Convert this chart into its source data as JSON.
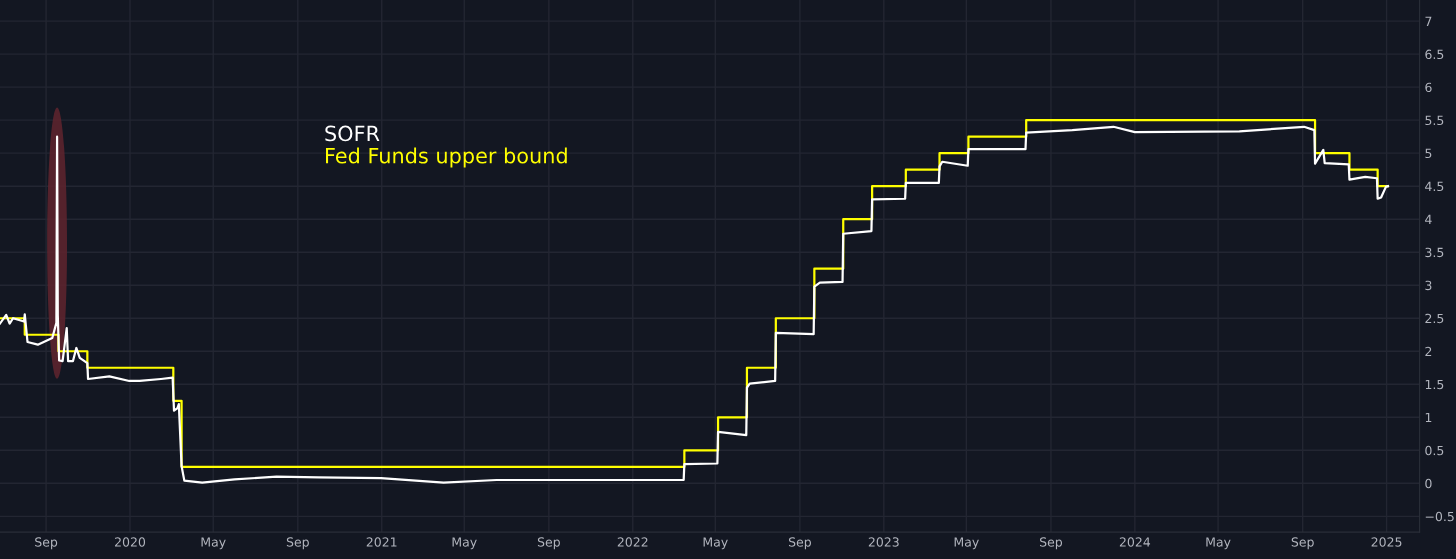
{
  "chart_data": {
    "type": "line",
    "xlim": [
      "2019-06-26",
      "2025-02-18"
    ],
    "ylim": [
      -0.74,
      7.32
    ],
    "xticks": [
      {
        "value": "2019-09",
        "label": "Sep"
      },
      {
        "value": "2020",
        "label": "2020"
      },
      {
        "value": "2020-05",
        "label": "May"
      },
      {
        "value": "2020-09",
        "label": "Sep"
      },
      {
        "value": "2021",
        "label": "2021"
      },
      {
        "value": "2021-05",
        "label": "May"
      },
      {
        "value": "2021-09",
        "label": "Sep"
      },
      {
        "value": "2022",
        "label": "2022"
      },
      {
        "value": "2022-05",
        "label": "May"
      },
      {
        "value": "2022-09",
        "label": "Sep"
      },
      {
        "value": "2023",
        "label": "2023"
      },
      {
        "value": "2023-05",
        "label": "May"
      },
      {
        "value": "2023-09",
        "label": "Sep"
      },
      {
        "value": "2024",
        "label": "2024"
      },
      {
        "value": "2024-05",
        "label": "May"
      },
      {
        "value": "2024-09",
        "label": "Sep"
      },
      {
        "value": "2025",
        "label": "2025"
      }
    ],
    "yticks": [
      {
        "value": -0.5,
        "label": "−0.5"
      },
      0,
      0.5,
      1,
      1.5,
      2,
      2.5,
      3,
      3.5,
      4,
      4.5,
      5,
      5.5,
      6,
      6.5,
      7
    ],
    "grid": true,
    "legend": "top left",
    "series": [
      {
        "name": "SOFR",
        "color": "#ffffff",
        "x": [
          "2019-06-26",
          "2019-07-05",
          "2019-07-10",
          "2019-07-15",
          "2019-07-31",
          "2019-08-01",
          "2019-08-05",
          "2019-08-20",
          "2019-09-10",
          "2019-09-16",
          "2019-09-17",
          "2019-09-18",
          "2019-09-20",
          "2019-09-25",
          "2019-10-01",
          "2019-10-03",
          "2019-10-10",
          "2019-10-15",
          "2019-10-20",
          "2019-10-31",
          "2019-11-01",
          "2019-12-02",
          "2019-12-31",
          "2020-01-15",
          "2020-02-15",
          "2020-03-03",
          "2020-03-05",
          "2020-03-10",
          "2020-03-12",
          "2020-03-16",
          "2020-03-20",
          "2020-04-15",
          "2020-06-01",
          "2020-08-01",
          "2020-10-01",
          "2020-12-31",
          "2021-04-01",
          "2021-06-17",
          "2022-03-16",
          "2022-03-17",
          "2022-05-04",
          "2022-05-05",
          "2022-06-15",
          "2022-06-16",
          "2022-06-20",
          "2022-07-27",
          "2022-07-28",
          "2022-09-21",
          "2022-09-22",
          "2022-09-30",
          "2022-11-02",
          "2022-11-03",
          "2022-12-14",
          "2022-12-15",
          "2023-02-01",
          "2023-02-02",
          "2023-03-22",
          "2023-03-23",
          "2023-03-27",
          "2023-05-03",
          "2023-05-04",
          "2023-07-26",
          "2023-07-27",
          "2023-10-02",
          "2023-12-01",
          "2024-01-01",
          "2024-06-01",
          "2024-09-03",
          "2024-09-18",
          "2024-09-19",
          "2024-10-01",
          "2024-10-03",
          "2024-11-07",
          "2024-11-08",
          "2024-12-01",
          "2024-12-18",
          "2024-12-19",
          "2024-12-24",
          "2024-12-31",
          "2025-01-03"
        ],
        "values": [
          2.42,
          2.55,
          2.42,
          2.5,
          2.45,
          2.56,
          2.14,
          2.1,
          2.2,
          2.43,
          5.25,
          2.55,
          1.86,
          1.85,
          2.35,
          1.85,
          1.85,
          2.05,
          1.9,
          1.82,
          1.58,
          1.62,
          1.55,
          1.55,
          1.58,
          1.6,
          1.1,
          1.14,
          1.2,
          0.26,
          0.04,
          0.01,
          0.06,
          0.1,
          0.09,
          0.08,
          0.01,
          0.05,
          0.05,
          0.29,
          0.3,
          0.78,
          0.73,
          1.45,
          1.51,
          1.55,
          2.28,
          2.26,
          2.98,
          3.04,
          3.05,
          3.78,
          3.82,
          4.3,
          4.31,
          4.55,
          4.55,
          4.8,
          4.87,
          4.81,
          5.06,
          5.06,
          5.31,
          5.35,
          5.4,
          5.32,
          5.33,
          5.4,
          5.35,
          4.84,
          5.05,
          4.85,
          4.83,
          4.6,
          4.64,
          4.62,
          4.31,
          4.33,
          4.49,
          4.5
        ]
      },
      {
        "name": "Fed Funds upper bound",
        "color": "#ffff00",
        "type": "step",
        "x": [
          "2019-06-26",
          "2019-08-01",
          "2019-09-19",
          "2019-10-31",
          "2020-03-04",
          "2020-03-16",
          "2022-03-17",
          "2022-05-05",
          "2022-06-16",
          "2022-07-28",
          "2022-09-22",
          "2022-11-03",
          "2022-12-15",
          "2023-02-02",
          "2023-03-23",
          "2023-05-04",
          "2023-07-27",
          "2024-09-19",
          "2024-11-08",
          "2024-12-19",
          "2025-01-03"
        ],
        "values": [
          2.5,
          2.25,
          2.0,
          1.75,
          1.25,
          0.25,
          0.5,
          1.0,
          1.75,
          2.5,
          3.25,
          4.0,
          4.5,
          4.75,
          5.0,
          5.25,
          5.5,
          5.0,
          4.75,
          4.5,
          4.5
        ]
      }
    ]
  }
}
